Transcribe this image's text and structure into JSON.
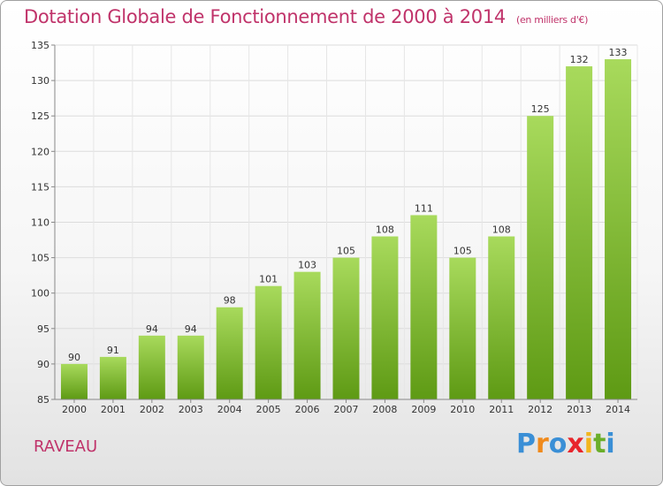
{
  "header": {
    "title": "Dotation Globale de Fonctionnement de 2000 à 2014",
    "subtitle": "(en milliers d'€)"
  },
  "footer": {
    "commune": "RAVEAU",
    "logo_letters": [
      "P",
      "r",
      "o",
      "x",
      "i",
      "t",
      "i"
    ],
    "logo_colors": [
      "#3a8fd6",
      "#f08a1c",
      "#3a8fd6",
      "#e8262c",
      "#f2b51d",
      "#6aae2a",
      "#3a8fd6"
    ]
  },
  "colors": {
    "bar_light": "#a8da5c",
    "bar_dark": "#5e9a14",
    "text_accent": "#c0336a"
  },
  "chart_data": {
    "type": "bar",
    "categories": [
      "2000",
      "2001",
      "2002",
      "2003",
      "2004",
      "2005",
      "2006",
      "2007",
      "2008",
      "2009",
      "2010",
      "2011",
      "2012",
      "2013",
      "2014"
    ],
    "values": [
      90,
      91,
      94,
      94,
      98,
      101,
      103,
      105,
      108,
      111,
      105,
      108,
      125,
      132,
      133
    ],
    "ylim": [
      85,
      135
    ],
    "yticks": [
      85,
      90,
      95,
      100,
      105,
      110,
      115,
      120,
      125,
      130,
      135
    ],
    "grid": true,
    "xlabel": "",
    "ylabel": ""
  }
}
